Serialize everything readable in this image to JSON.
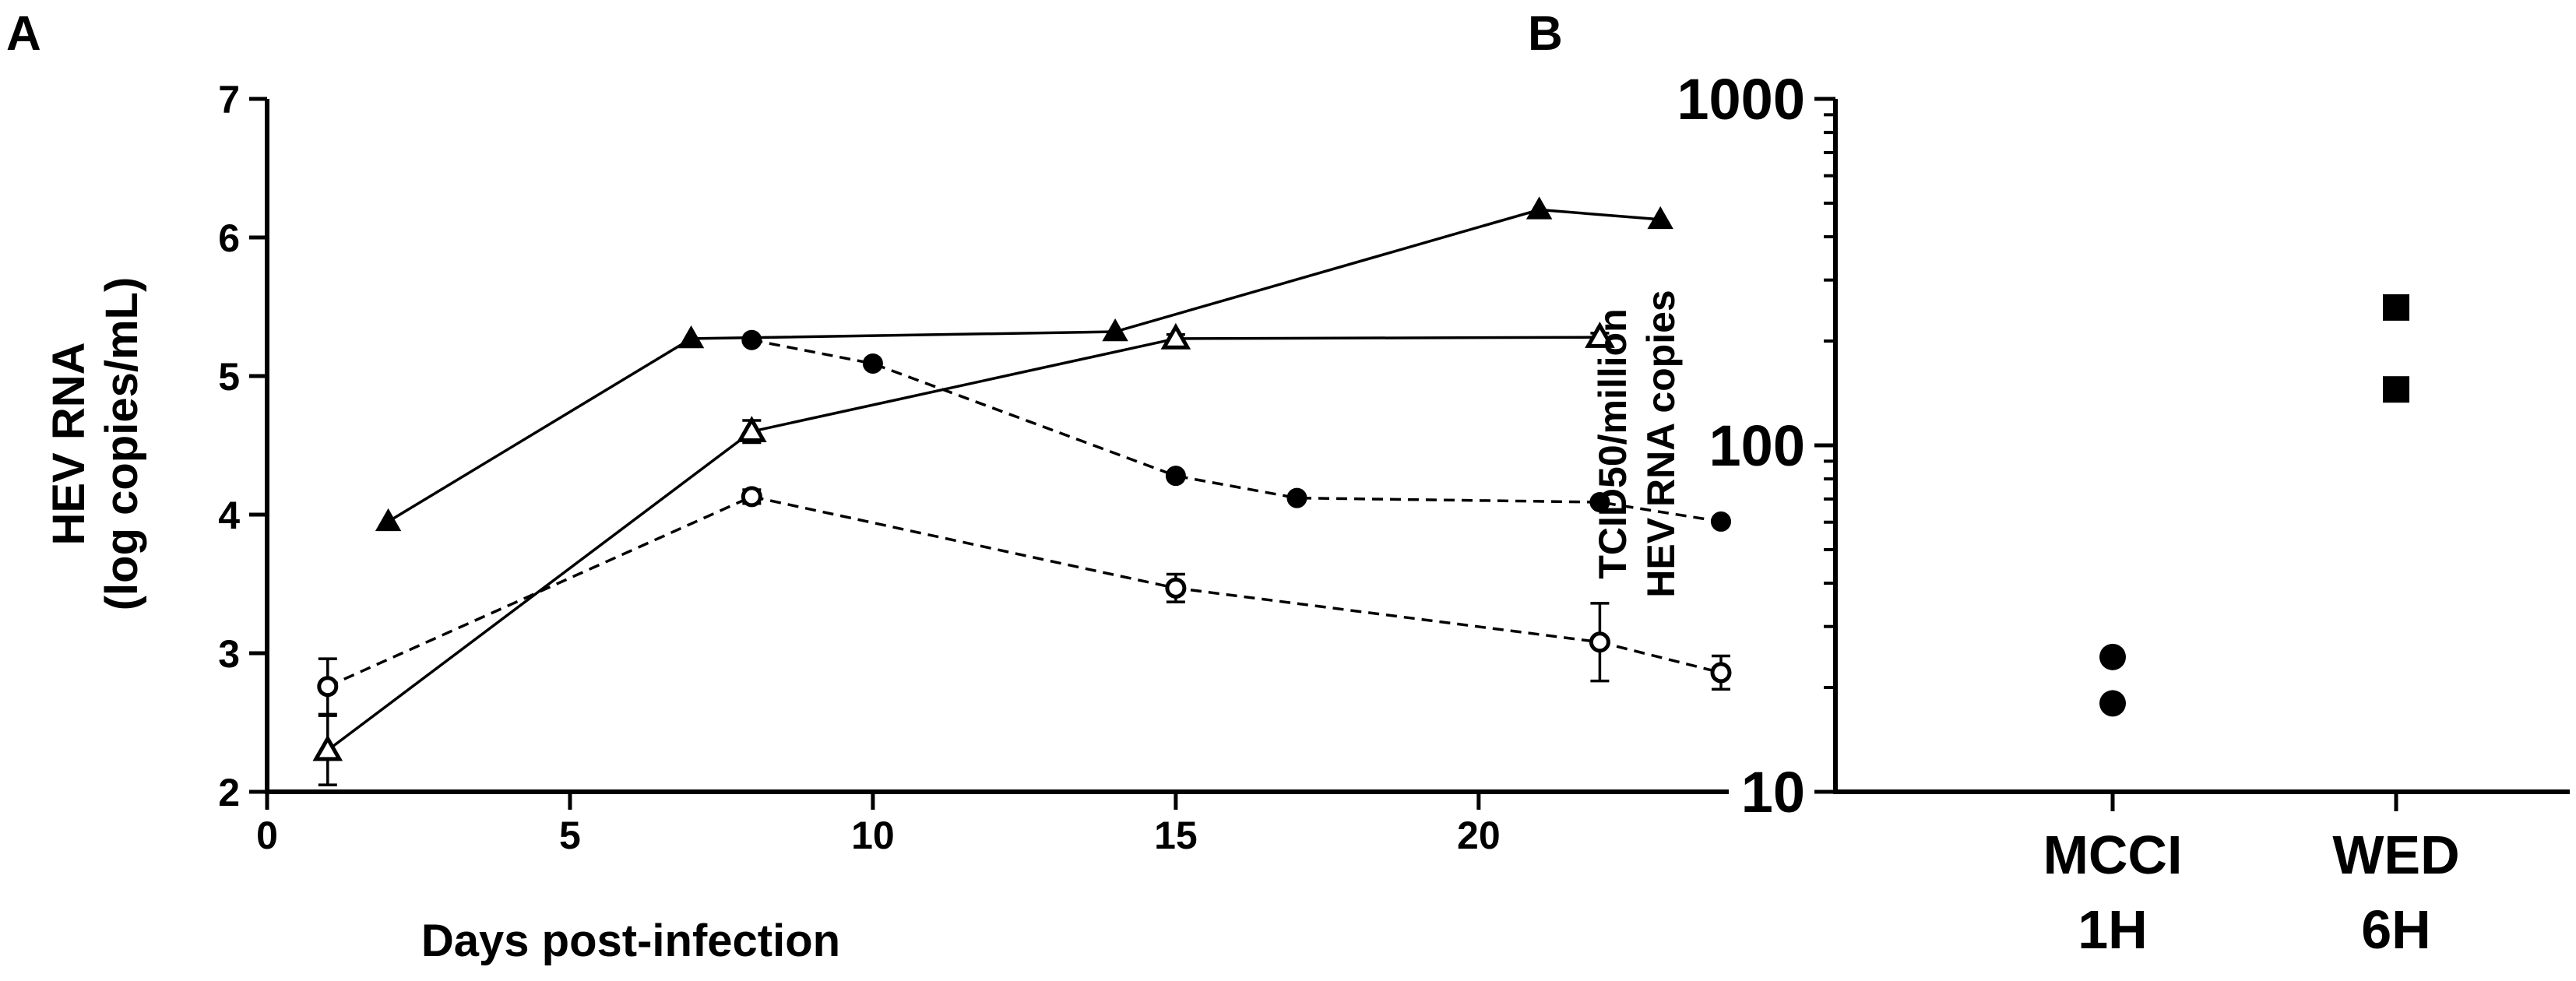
{
  "chart_data": [
    {
      "panel": "A",
      "type": "line",
      "xlabel": "Days post-infection",
      "ylabel": [
        "HEV RNA",
        "(log copies/mL)"
      ],
      "xlim": [
        0,
        24
      ],
      "ylim": [
        2,
        7
      ],
      "xticks": [
        0,
        5,
        10,
        15,
        20
      ],
      "yticks": [
        2,
        3,
        4,
        5,
        6,
        7
      ],
      "series": [
        {
          "name": "filled triangle",
          "marker": "triangle-filled",
          "line": "solid",
          "x": [
            2,
            7,
            14,
            21,
            23
          ],
          "y": [
            3.95,
            5.27,
            5.32,
            6.2,
            6.13
          ]
        },
        {
          "name": "open triangle",
          "marker": "triangle-open",
          "line": "solid",
          "x": [
            1,
            8,
            15,
            22
          ],
          "y": [
            2.3,
            4.6,
            5.27,
            5.28
          ],
          "err": [
            0.25,
            0.08,
            0.03,
            0.03
          ]
        },
        {
          "name": "filled circle",
          "marker": "circle-filled",
          "line": "dashed",
          "x": [
            8,
            10,
            15,
            17,
            22,
            24
          ],
          "y": [
            5.26,
            5.09,
            4.28,
            4.12,
            4.09,
            3.95
          ]
        },
        {
          "name": "open circle",
          "marker": "circle-open",
          "line": "dashed",
          "x": [
            1,
            8,
            15,
            22,
            24
          ],
          "y": [
            2.76,
            4.13,
            3.47,
            3.08,
            2.86
          ],
          "err": [
            0.2,
            0.05,
            0.1,
            0.28,
            0.12
          ]
        }
      ]
    },
    {
      "panel": "B",
      "type": "scatter",
      "ylabel": [
        "TCID50/million",
        "HEV RNA copies"
      ],
      "yscale": "log",
      "ylim": [
        10,
        1000
      ],
      "yticks": [
        10,
        100,
        1000
      ],
      "categories": [
        {
          "line1": "MCCI",
          "line2": "1H"
        },
        {
          "line1": "WED",
          "line2": "6H"
        }
      ],
      "series": [
        {
          "name": "MCCI 1H",
          "marker": "circle-filled",
          "category": 0,
          "values": [
            24.5,
            18
          ]
        },
        {
          "name": "WED 6H",
          "marker": "square-filled",
          "category": 1,
          "values": [
            250,
            145
          ]
        }
      ]
    }
  ]
}
